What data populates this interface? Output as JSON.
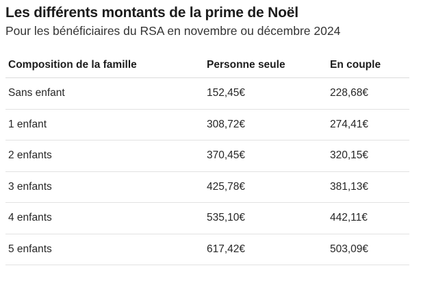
{
  "title": "Les différents montants de la prime de Noël",
  "subtitle": "Pour les bénéficiaires du RSA en novembre ou décembre 2024",
  "table": {
    "headers": [
      "Composition de la famille",
      "Personne seule",
      "En couple"
    ],
    "rows": [
      [
        "Sans enfant",
        "152,45€",
        "228,68€"
      ],
      [
        "1 enfant",
        "308,72€",
        "274,41€"
      ],
      [
        "2 enfants",
        "370,45€",
        "320,15€"
      ],
      [
        "3 enfants",
        "425,78€",
        "381,13€"
      ],
      [
        "4 enfants",
        "535,10€",
        "442,11€"
      ],
      [
        "5 enfants",
        "617,42€",
        "503,09€"
      ]
    ]
  }
}
